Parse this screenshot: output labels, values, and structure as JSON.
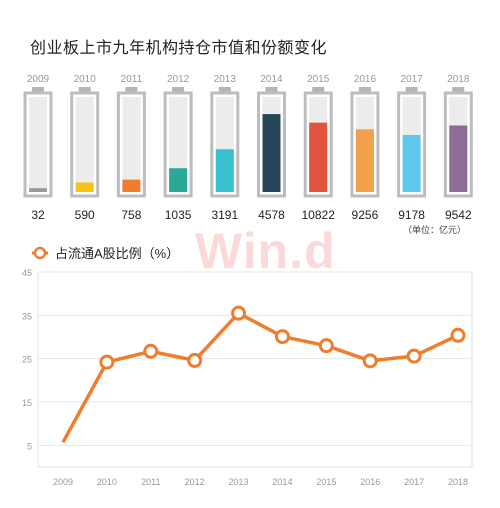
{
  "chart_data": [
    {
      "type": "bar",
      "title": "创业板上市九年机构持仓市值和份额变化",
      "categories": [
        "2009",
        "2010",
        "2011",
        "2012",
        "2013",
        "2014",
        "2015",
        "2016",
        "2017",
        "2018"
      ],
      "values": [
        32,
        590,
        758,
        1035,
        3191,
        4578,
        10822,
        9256,
        9178,
        9542
      ],
      "fill_levels": [
        0.04,
        0.1,
        0.13,
        0.25,
        0.45,
        0.82,
        0.73,
        0.66,
        0.6,
        0.7
      ],
      "colors": [
        "#9a9a9a",
        "#f5c218",
        "#ef7d2e",
        "#2aaa94",
        "#37c1cf",
        "#27465a",
        "#e2533f",
        "#f3a04c",
        "#5dc8ec",
        "#8c6d97"
      ],
      "unit_note": "（单位：亿元）"
    },
    {
      "type": "line",
      "legend": "占流通A股比例（%）",
      "x": [
        "2009",
        "2010",
        "2011",
        "2012",
        "2013",
        "2014",
        "2015",
        "2016",
        "2017",
        "2018"
      ],
      "series": [
        {
          "name": "占流通A股比例（%）",
          "values": [
            5.7,
            24.2,
            26.7,
            24.6,
            35.5,
            30.1,
            28.0,
            24.5,
            25.6,
            30.4
          ]
        }
      ],
      "yticks": [
        45,
        35,
        25,
        15,
        5
      ],
      "ylim": [
        0,
        45
      ],
      "color": "#ef7d2e",
      "grid": true
    }
  ],
  "watermark": "Win.d"
}
